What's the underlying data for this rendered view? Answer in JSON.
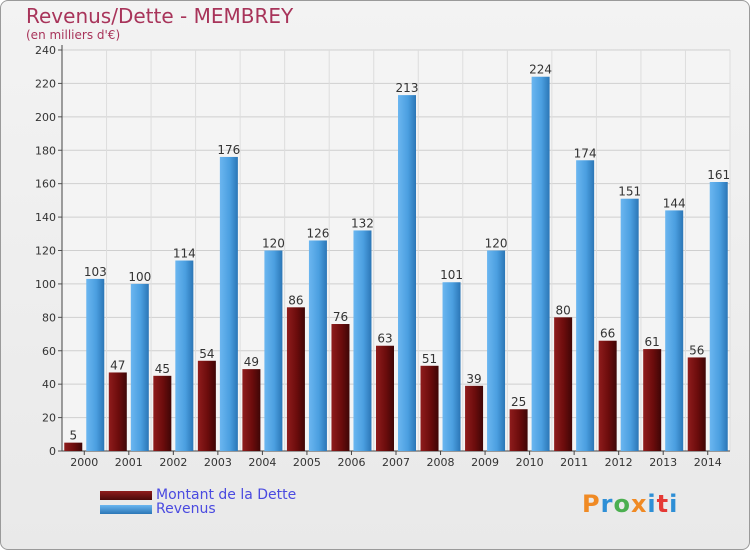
{
  "title": "Revenus/Dette - MEMBREY",
  "subtitle": "(en milliers d'€)",
  "logo": {
    "text": "Proxiti",
    "colors": [
      "#f08a24",
      "#2e8fd6",
      "#4caf50",
      "#f08a24",
      "#2e8fd6",
      "#e53935",
      "#2e8fd6"
    ]
  },
  "colors": {
    "dette": "#7a1212",
    "revenus": "#4fa3e3",
    "title": "#a8345a",
    "legend_text": "#4a4ae0"
  },
  "chart_data": {
    "type": "bar",
    "categories": [
      "2000",
      "2001",
      "2002",
      "2003",
      "2004",
      "2005",
      "2006",
      "2007",
      "2008",
      "2009",
      "2010",
      "2011",
      "2012",
      "2013",
      "2014"
    ],
    "series": [
      {
        "name": "Montant de la Dette",
        "values": [
          5,
          47,
          45,
          54,
          49,
          86,
          76,
          63,
          51,
          39,
          25,
          80,
          66,
          61,
          56
        ]
      },
      {
        "name": "Revenus",
        "values": [
          103,
          100,
          114,
          176,
          120,
          126,
          132,
          213,
          101,
          120,
          224,
          174,
          151,
          144,
          161
        ]
      }
    ],
    "ylim": [
      0,
      240
    ],
    "yticks": [
      0,
      20,
      40,
      60,
      80,
      100,
      120,
      140,
      160,
      180,
      200,
      220,
      240
    ],
    "grid": true,
    "legend_position": "bottom-left"
  }
}
